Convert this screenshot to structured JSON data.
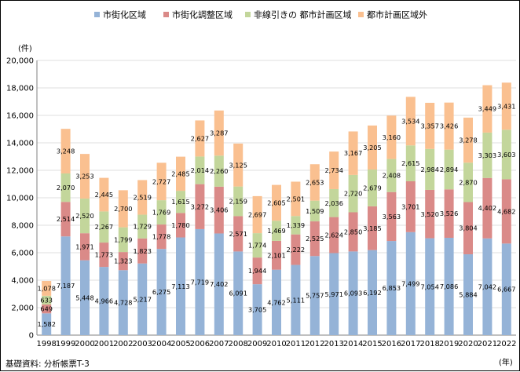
{
  "chart_data": {
    "type": "bar",
    "stacked": true,
    "title": "",
    "xlabel": "",
    "ylabel": "",
    "y_unit_label": "(件)",
    "x_unit_label": "(年)",
    "source_note": "基礎資料: 分析帳票T-3",
    "ylim": [
      0,
      20000
    ],
    "y_ticks": [
      "0",
      "2,000",
      "4,000",
      "6,000",
      "8,000",
      "10,000",
      "12,000",
      "14,000",
      "16,000",
      "18,000",
      "20,000"
    ],
    "grid": true,
    "legend_position": "top",
    "categories": [
      "1998",
      "1999",
      "2000",
      "2001",
      "2002",
      "2003",
      "2004",
      "2005",
      "2006",
      "2007",
      "2008",
      "2009",
      "2010",
      "2011",
      "2012",
      "2013",
      "2014",
      "2015",
      "2016",
      "2017",
      "2018",
      "2019",
      "2020",
      "2021",
      "2022"
    ],
    "series": [
      {
        "name": "市街化区域",
        "color": "#95B3D7",
        "values": [
          1582,
          7187,
          5448,
          4966,
          4728,
          5217,
          6275,
          7113,
          7719,
          7402,
          6091,
          3705,
          4762,
          5111,
          5757,
          5971,
          6093,
          6192,
          6853,
          7499,
          7054,
          7086,
          5884,
          7042,
          6667
        ],
        "labels": [
          "1,582",
          "7,187",
          "5,448",
          "4,966",
          "4,728",
          "5,217",
          "6,275",
          "7,113",
          "7,719",
          "7,402",
          "6,091",
          "3,705",
          "4,762",
          "5,111",
          "5,757",
          "5,971",
          "6,093",
          "6,192",
          "6,853",
          "7,499",
          "7,054",
          "7,086",
          "5,884",
          "7,042",
          "6,667"
        ]
      },
      {
        "name": "市街化調整区域",
        "color": "#DA8A88",
        "values": [
          649,
          2514,
          1971,
          1773,
          1323,
          1823,
          1778,
          1780,
          3272,
          3406,
          2571,
          1944,
          2101,
          2222,
          2525,
          2624,
          2850,
          3185,
          3563,
          3701,
          3520,
          3526,
          3804,
          4402,
          4682
        ],
        "labels": [
          "649",
          "2,514",
          "1,971",
          "1,773",
          "1,323",
          "1,823",
          "1,778",
          "1,780",
          "3,272",
          "3,406",
          "2,571",
          "1,944",
          "2,101",
          "2,222",
          "2,525",
          "2,624",
          "2,850",
          "3,185",
          "3,563",
          "3,701",
          "3,520",
          "3,526",
          "3,804",
          "4,402",
          "4,682"
        ]
      },
      {
        "name": "非線引きの 都市計画区域",
        "color": "#C3D69B",
        "values": [
          633,
          2070,
          2520,
          2267,
          1799,
          1729,
          1769,
          1615,
          2014,
          2260,
          2159,
          1774,
          1469,
          1339,
          1509,
          2036,
          2720,
          2679,
          2408,
          2615,
          2984,
          2894,
          2870,
          3303,
          3603
        ],
        "labels": [
          "633",
          "2,070",
          "2,520",
          "2,267",
          "1,799",
          "1,729",
          "1,769",
          "1,615",
          "2,014",
          "2,260",
          "2,159",
          "1,774",
          "1,469",
          "1,339",
          "1,509",
          "2,036",
          "2,720",
          "2,679",
          "2,408",
          "2,615",
          "2,984",
          "2,894",
          "2,870",
          "3,303",
          "3,603"
        ]
      },
      {
        "name": "都市計画区域外",
        "color": "#FAC090",
        "values": [
          1078,
          3248,
          3253,
          2445,
          2700,
          2519,
          2727,
          2485,
          2627,
          3287,
          3125,
          2697,
          2605,
          2501,
          2653,
          2734,
          3167,
          3205,
          3160,
          3534,
          3357,
          3426,
          3278,
          3449,
          3431
        ],
        "labels": [
          "1,078",
          "3,248",
          "3,253",
          "2,445",
          "2,700",
          "2,519",
          "2,727",
          "2,485",
          "2,627",
          "3,287",
          "3,125",
          "2,697",
          "2,605",
          "2,501",
          "2,653",
          "2,734",
          "3,167",
          "3,205",
          "3,160",
          "3,534",
          "3,357",
          "3,426",
          "3,278",
          "3,449",
          "3,431"
        ]
      }
    ]
  }
}
